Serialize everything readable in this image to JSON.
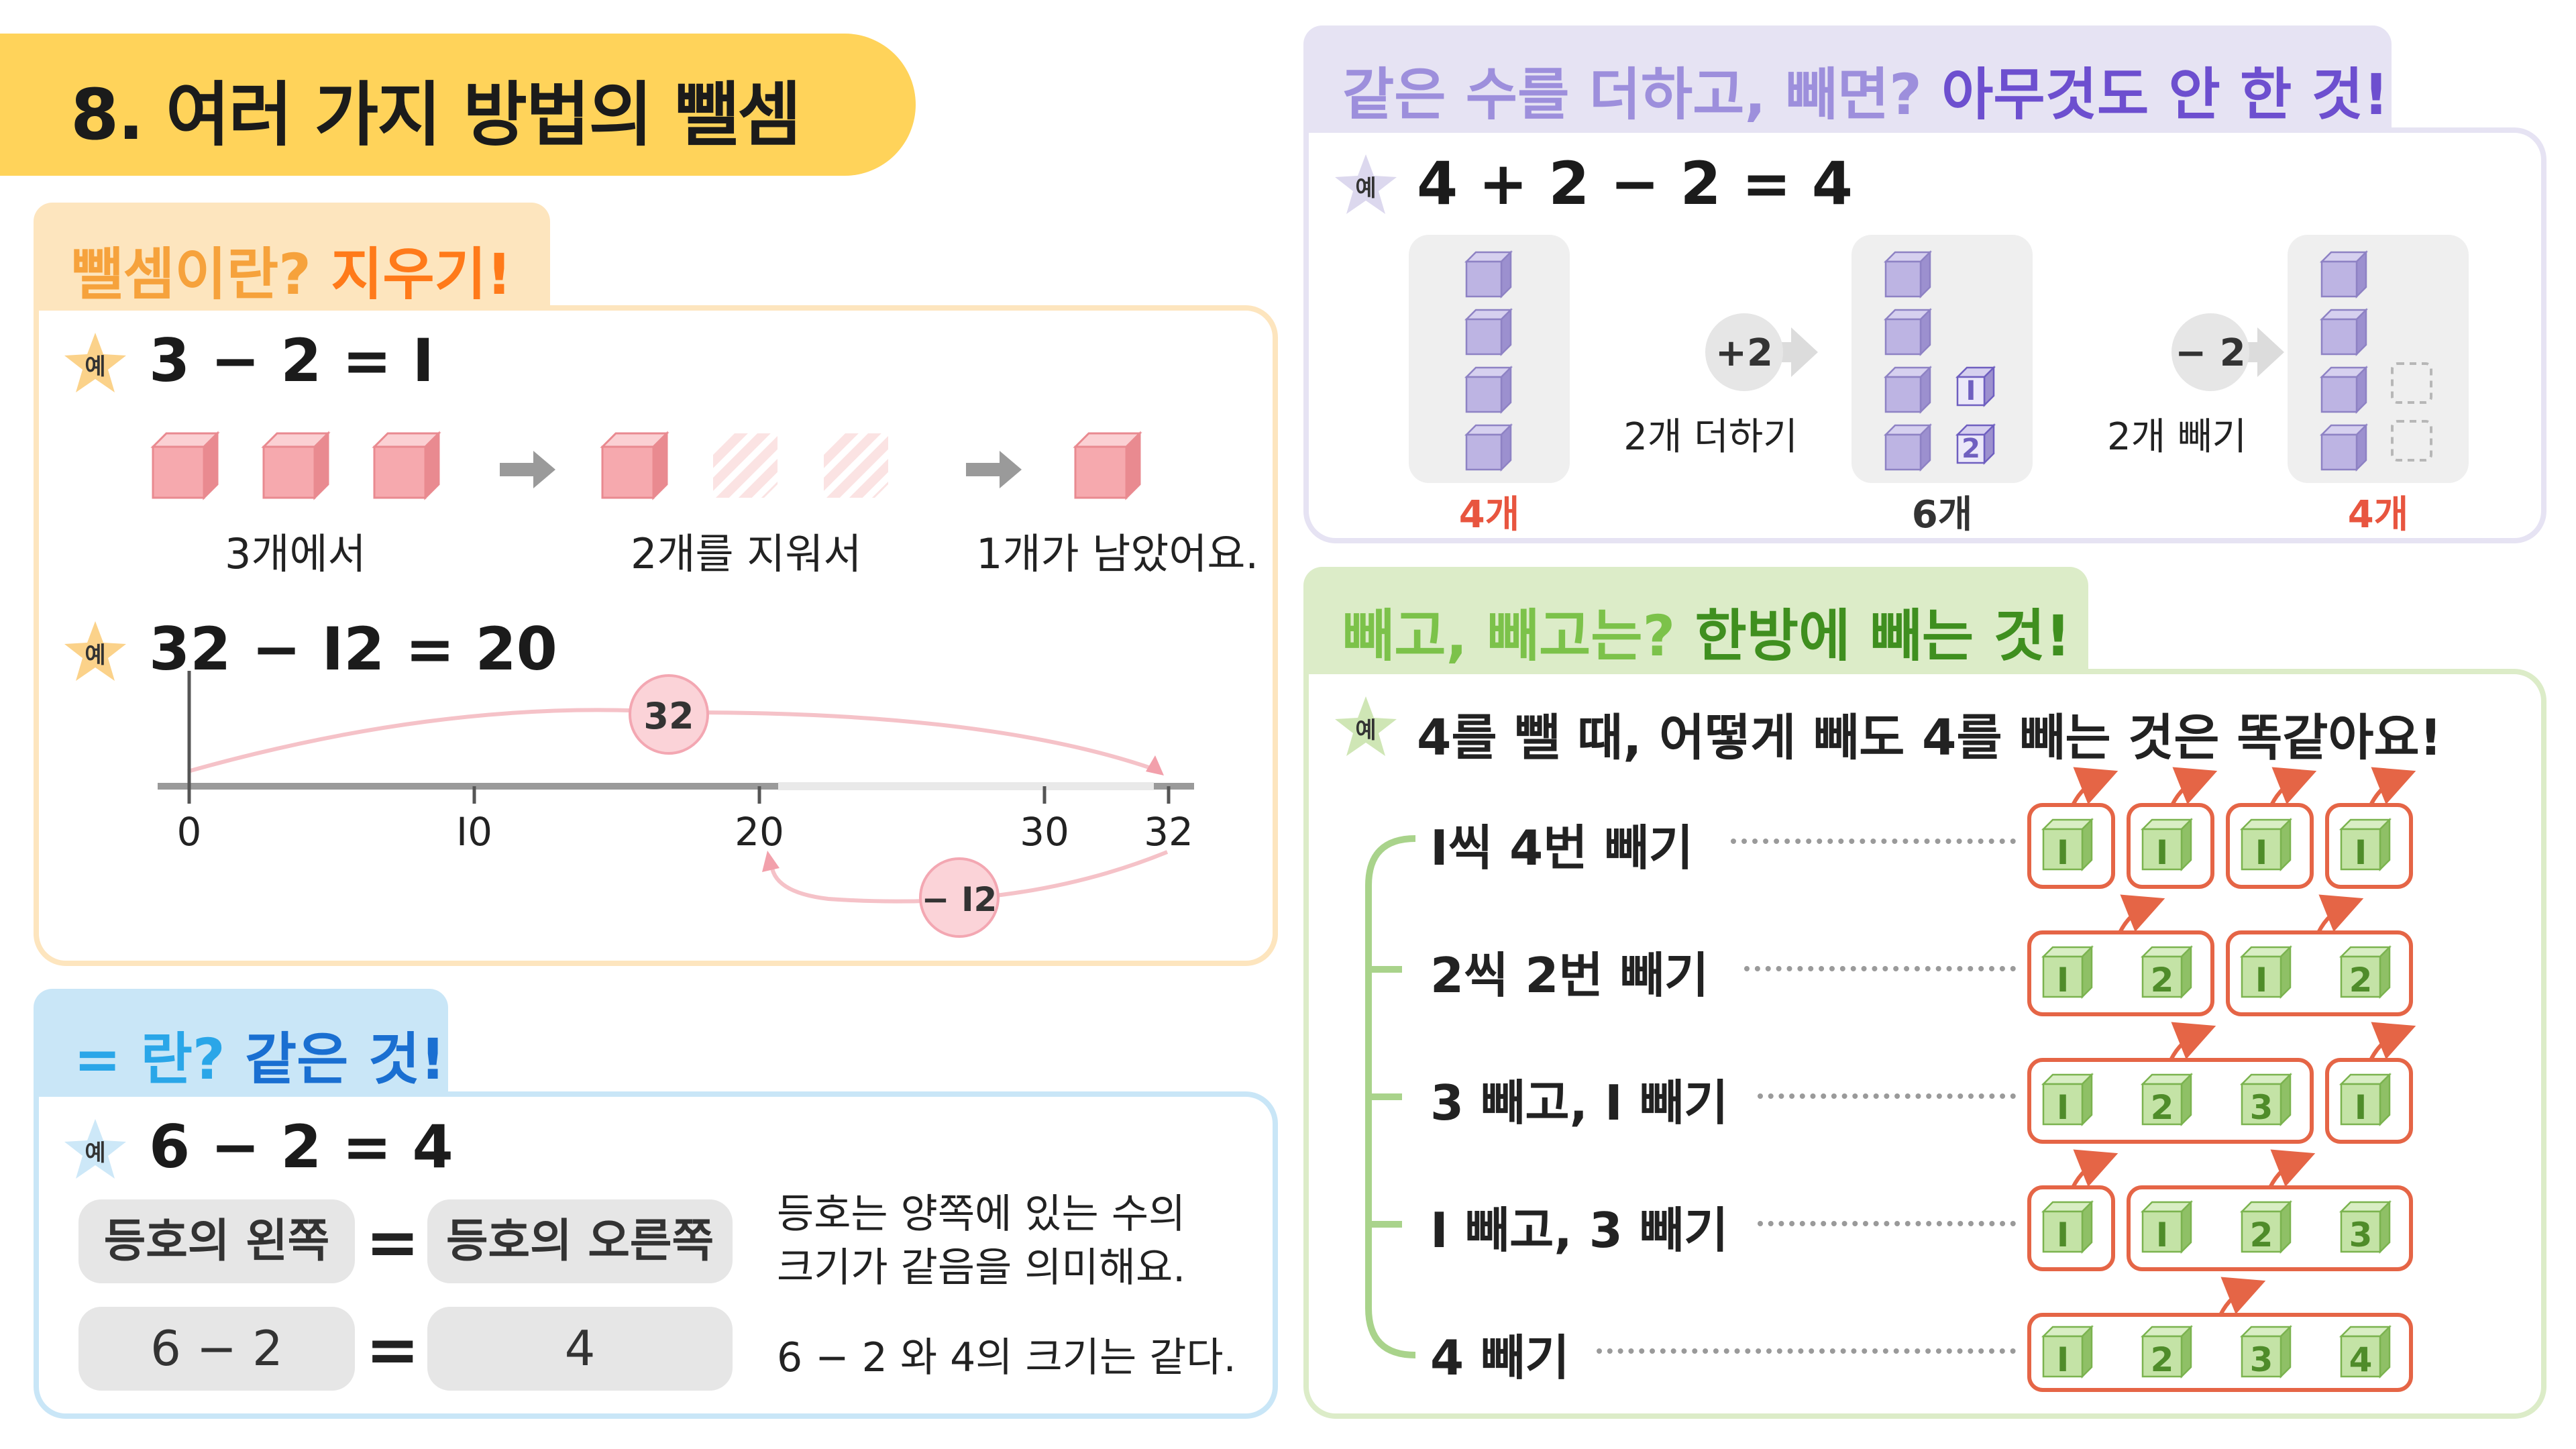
{
  "title": "8. 여러 가지 방법의 뺄셈",
  "example_label": "예",
  "panel1": {
    "tab_q": "뺄셈이란? ",
    "tab_a": "지우기!",
    "eq1": "3 − 2 = I",
    "captions": [
      "3개에서",
      "2개를 지워서",
      "1개가 남았어요."
    ],
    "eq2": "32 − I2 = 20",
    "numberline": {
      "ticks": [
        "0",
        "I0",
        "20",
        "30",
        "32"
      ],
      "start": "32",
      "minus": "− I2"
    }
  },
  "panel2": {
    "tab_a": "= 란? ",
    "tab_b": "같은 것!",
    "eq": "6 − 2 = 4",
    "left_label": "등호의 왼쪽",
    "right_label": "등호의 오른쪽",
    "equals": "=",
    "left_value": "6 − 2",
    "right_value": "4",
    "note_line1": "등호는 양쪽에 있는 수의",
    "note_line2": "크기가 같음을 의미해요.",
    "note2": "6 − 2 와 4의 크기는 같다."
  },
  "panel3": {
    "tab_q": "같은 수를 더하고, 빼면? ",
    "tab_a": "아무것도 안 한 것!",
    "eq": "4 + 2 − 2 = 4",
    "plus_badge": "+2",
    "plus_caption": "2개 더하기",
    "minus_badge": "− 2",
    "minus_caption": "2개 빼기",
    "counts": [
      "4개",
      "6개",
      "4개"
    ],
    "small_labels": [
      "I",
      "2"
    ]
  },
  "panel4": {
    "tab_q": "빼고, 빼고는? ",
    "tab_a": "한방에 빼는 것!",
    "header": "4를 뺄 때, 어떻게 빼도 4를 빼는 것은 똑같아요!",
    "rows": [
      {
        "label": "I씩 4번 빼기",
        "groups": [
          [
            "I"
          ],
          [
            "I"
          ],
          [
            "I"
          ],
          [
            "I"
          ]
        ]
      },
      {
        "label": "2씩 2번 빼기",
        "groups": [
          [
            "I",
            "2"
          ],
          [
            "I",
            "2"
          ]
        ]
      },
      {
        "label": "3 빼고, I 빼기",
        "groups": [
          [
            "I",
            "2",
            "3"
          ],
          [
            "I"
          ]
        ]
      },
      {
        "label": "I 빼고, 3 빼기",
        "groups": [
          [
            "I"
          ],
          [
            "I",
            "2",
            "3"
          ]
        ]
      },
      {
        "label": "4 빼기",
        "groups": [
          [
            "I",
            "2",
            "3",
            "4"
          ]
        ]
      }
    ]
  },
  "colors": {
    "yellow": "#ffd35a",
    "orange_accent": "#ff7a1a",
    "orange_q": "#f6a23c",
    "blue_tab": "#c9e6f7",
    "blue_accent": "#1e88e5",
    "purple_tab": "#e6e3f3",
    "purple_accent": "#7a5fcf",
    "green_tab": "#dcecc8",
    "green_accent": "#6fbf3c",
    "red_count": "#e8553f"
  }
}
